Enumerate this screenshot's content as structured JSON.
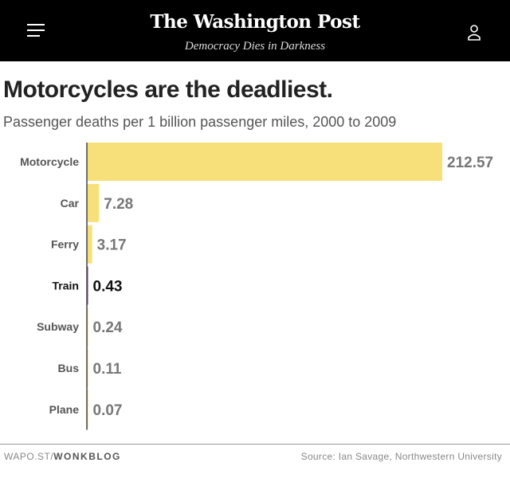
{
  "header": {
    "logo": "The Washington Post",
    "tagline": "Democracy Dies in Darkness",
    "menu_icon": "hamburger-menu-icon",
    "account_icon": "user-account-icon"
  },
  "chart_data": {
    "type": "bar",
    "orientation": "horizontal",
    "title": "Motorcycles are the deadliest.",
    "subtitle": "Passenger deaths per 1 billion passenger miles, 2000 to 2009",
    "categories": [
      "Motorcycle",
      "Car",
      "Ferry",
      "Train",
      "Subway",
      "Bus",
      "Plane"
    ],
    "values": [
      212.57,
      7.28,
      3.17,
      0.43,
      0.24,
      0.11,
      0.07
    ],
    "value_labels": [
      "212.57",
      "7.28",
      "3.17",
      "0.43",
      "0.24",
      "0.11",
      "0.07"
    ],
    "highlight": "Train",
    "colors": {
      "bar": "#f7e07a",
      "highlight_bar": "#7a3d6c",
      "axis": "#444444",
      "label": "#666666",
      "highlight_label": "#111111"
    },
    "xlim": [
      0,
      212.57
    ],
    "grid": false
  },
  "footer": {
    "source_prefix": "WAPO.ST/",
    "source_bold": "WONKBLOG",
    "credit": "Source: Ian Savage, Northwestern University"
  }
}
